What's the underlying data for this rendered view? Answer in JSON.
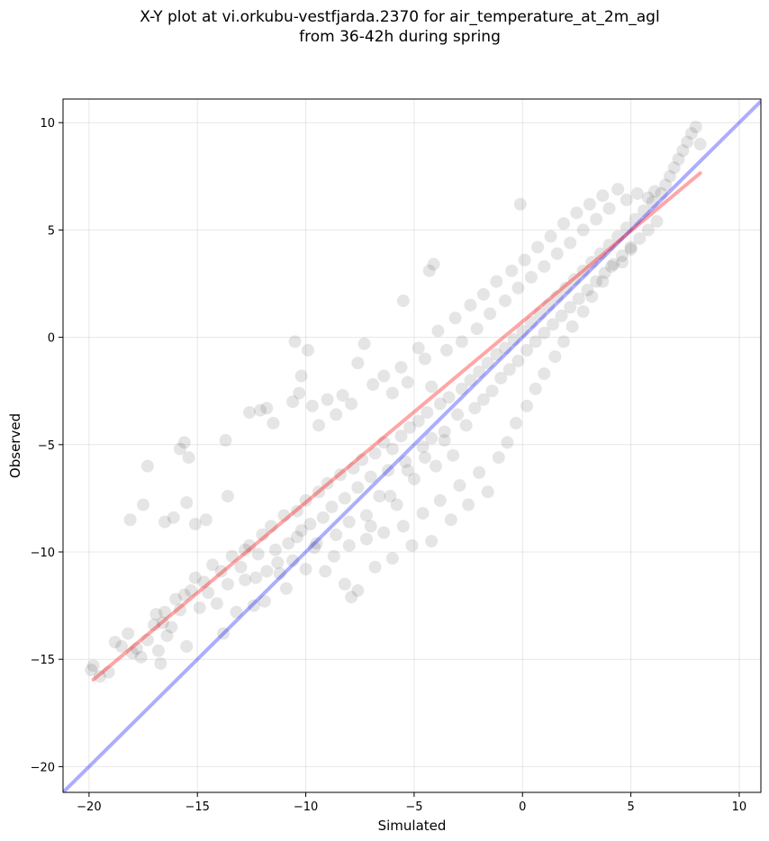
{
  "chart_data": {
    "type": "scatter",
    "title_line1": "X-Y plot at vi.orkubu-vestfjarda.2370 for air_temperature_at_2m_agl",
    "title_line2": "from 36-42h during spring",
    "xlabel": "Simulated",
    "ylabel": "Observed",
    "xlim": [
      -21.2,
      11.0
    ],
    "ylim": [
      -21.2,
      11.1
    ],
    "x_ticks": [
      -20,
      -15,
      -10,
      -5,
      0,
      5,
      10
    ],
    "y_ticks": [
      -20,
      -15,
      -10,
      -5,
      0,
      5,
      10
    ],
    "x_tick_labels": [
      "−20",
      "−15",
      "−10",
      "−5",
      "0",
      "5",
      "10"
    ],
    "y_tick_labels": [
      "−20",
      "−15",
      "−10",
      "−5",
      "0",
      "5",
      "10"
    ],
    "grid": true,
    "point_color": "#000000",
    "point_alpha": 0.1,
    "identity_line": {
      "x": [
        -21.2,
        11.0
      ],
      "y": [
        -21.2,
        11.0
      ],
      "color": "#0000ff"
    },
    "fit_line": {
      "x": [
        -19.8,
        8.2
      ],
      "y": [
        -15.95,
        7.65
      ],
      "color": "#ff0000"
    },
    "points": [
      [
        -19.9,
        -15.5
      ],
      [
        -19.8,
        -15.3
      ],
      [
        -19.5,
        -15.8
      ],
      [
        -19.1,
        -15.6
      ],
      [
        -18.8,
        -14.2
      ],
      [
        -18.5,
        -14.4
      ],
      [
        -18.2,
        -13.8
      ],
      [
        -18.0,
        -14.7
      ],
      [
        -17.8,
        -14.5
      ],
      [
        -17.6,
        -14.9
      ],
      [
        -17.3,
        -14.1
      ],
      [
        -17.0,
        -13.4
      ],
      [
        -16.8,
        -14.6
      ],
      [
        -16.7,
        -15.2
      ],
      [
        -16.9,
        -12.9
      ],
      [
        -16.6,
        -13.3
      ],
      [
        -16.5,
        -12.8
      ],
      [
        -16.4,
        -13.9
      ],
      [
        -16.2,
        -13.5
      ],
      [
        -16.0,
        -12.2
      ],
      [
        -15.8,
        -12.7
      ],
      [
        -15.6,
        -12.0
      ],
      [
        -15.5,
        -14.4
      ],
      [
        -15.3,
        -11.8
      ],
      [
        -15.1,
        -11.2
      ],
      [
        -14.9,
        -12.6
      ],
      [
        -14.7,
        -11.4
      ],
      [
        -14.5,
        -11.9
      ],
      [
        -14.3,
        -10.6
      ],
      [
        -14.1,
        -12.4
      ],
      [
        -13.9,
        -10.9
      ],
      [
        -13.8,
        -13.8
      ],
      [
        -13.6,
        -11.5
      ],
      [
        -13.4,
        -10.2
      ],
      [
        -13.2,
        -12.8
      ],
      [
        -13.0,
        -10.7
      ],
      [
        -12.8,
        -11.3
      ],
      [
        -12.6,
        -9.7
      ],
      [
        -12.4,
        -12.5
      ],
      [
        -12.2,
        -10.1
      ],
      [
        -12.0,
        -9.2
      ],
      [
        -11.8,
        -10.9
      ],
      [
        -11.6,
        -8.8
      ],
      [
        -11.4,
        -9.9
      ],
      [
        -11.2,
        -11.0
      ],
      [
        -11.0,
        -8.3
      ],
      [
        -10.8,
        -9.6
      ],
      [
        -10.6,
        -10.4
      ],
      [
        -10.4,
        -8.1
      ],
      [
        -10.2,
        -9.0
      ],
      [
        -10.0,
        -7.6
      ],
      [
        -9.8,
        -8.7
      ],
      [
        -9.6,
        -9.8
      ],
      [
        -9.4,
        -7.2
      ],
      [
        -9.2,
        -8.4
      ],
      [
        -9.0,
        -6.8
      ],
      [
        -8.8,
        -7.9
      ],
      [
        -8.6,
        -9.2
      ],
      [
        -8.4,
        -6.4
      ],
      [
        -8.2,
        -7.5
      ],
      [
        -8.0,
        -8.6
      ],
      [
        -7.8,
        -6.1
      ],
      [
        -7.6,
        -7.0
      ],
      [
        -7.4,
        -5.7
      ],
      [
        -7.2,
        -8.3
      ],
      [
        -7.0,
        -6.5
      ],
      [
        -6.8,
        -5.4
      ],
      [
        -6.6,
        -7.4
      ],
      [
        -6.4,
        -4.9
      ],
      [
        -6.2,
        -6.2
      ],
      [
        -6.0,
        -5.2
      ],
      [
        -5.8,
        -7.8
      ],
      [
        -5.6,
        -4.6
      ],
      [
        -5.4,
        -5.8
      ],
      [
        -5.2,
        -4.2
      ],
      [
        -5.0,
        -6.6
      ],
      [
        -4.8,
        -3.9
      ],
      [
        -4.6,
        -5.1
      ],
      [
        -4.4,
        -3.5
      ],
      [
        -4.2,
        -4.7
      ],
      [
        -4.0,
        -6.0
      ],
      [
        -3.8,
        -3.1
      ],
      [
        -3.6,
        -4.4
      ],
      [
        -3.4,
        -2.8
      ],
      [
        -3.2,
        -5.5
      ],
      [
        -3.0,
        -3.6
      ],
      [
        -2.8,
        -2.4
      ],
      [
        -2.6,
        -4.1
      ],
      [
        -2.4,
        -2.0
      ],
      [
        -2.2,
        -3.3
      ],
      [
        -2.0,
        -1.6
      ],
      [
        -1.8,
        -2.9
      ],
      [
        -1.6,
        -1.2
      ],
      [
        -1.4,
        -2.5
      ],
      [
        -1.2,
        -0.8
      ],
      [
        -1.0,
        -1.9
      ],
      [
        -0.8,
        -0.5
      ],
      [
        -0.6,
        -1.5
      ],
      [
        -0.4,
        -0.1
      ],
      [
        -0.2,
        -1.1
      ],
      [
        0.0,
        0.3
      ],
      [
        0.2,
        -0.6
      ],
      [
        0.4,
        0.7
      ],
      [
        0.6,
        -0.2
      ],
      [
        0.8,
        1.1
      ],
      [
        1.0,
        0.2
      ],
      [
        1.2,
        1.5
      ],
      [
        1.4,
        0.6
      ],
      [
        1.6,
        1.9
      ],
      [
        1.8,
        1.0
      ],
      [
        2.0,
        2.3
      ],
      [
        2.2,
        1.4
      ],
      [
        2.4,
        2.7
      ],
      [
        2.6,
        1.8
      ],
      [
        2.8,
        3.1
      ],
      [
        3.0,
        2.2
      ],
      [
        3.2,
        3.5
      ],
      [
        3.4,
        2.6
      ],
      [
        3.6,
        3.9
      ],
      [
        3.8,
        3.0
      ],
      [
        4.0,
        4.3
      ],
      [
        4.2,
        3.4
      ],
      [
        4.4,
        4.7
      ],
      [
        4.6,
        3.8
      ],
      [
        4.8,
        5.1
      ],
      [
        5.0,
        4.2
      ],
      [
        5.2,
        5.5
      ],
      [
        5.4,
        4.6
      ],
      [
        5.6,
        5.9
      ],
      [
        5.8,
        5.0
      ],
      [
        6.0,
        6.3
      ],
      [
        6.2,
        5.4
      ],
      [
        6.4,
        6.7
      ],
      [
        6.6,
        7.1
      ],
      [
        6.8,
        7.5
      ],
      [
        7.0,
        7.9
      ],
      [
        7.2,
        8.3
      ],
      [
        7.4,
        8.7
      ],
      [
        7.6,
        9.1
      ],
      [
        7.8,
        9.5
      ],
      [
        8.0,
        9.8
      ],
      [
        8.2,
        9.0
      ],
      [
        -18.1,
        -8.5
      ],
      [
        -17.5,
        -7.8
      ],
      [
        -17.3,
        -6.0
      ],
      [
        -16.5,
        -8.6
      ],
      [
        -16.1,
        -8.4
      ],
      [
        -15.8,
        -5.2
      ],
      [
        -15.6,
        -4.9
      ],
      [
        -15.5,
        -7.7
      ],
      [
        -15.4,
        -5.6
      ],
      [
        -15.1,
        -8.7
      ],
      [
        -14.6,
        -8.5
      ],
      [
        -13.6,
        -7.4
      ],
      [
        -13.7,
        -4.8
      ],
      [
        -12.1,
        -3.4
      ],
      [
        -12.6,
        -3.5
      ],
      [
        -11.8,
        -3.3
      ],
      [
        -11.5,
        -4.0
      ],
      [
        -10.6,
        -3.0
      ],
      [
        -10.3,
        -2.6
      ],
      [
        -10.2,
        -1.8
      ],
      [
        -9.9,
        -0.6
      ],
      [
        -10.5,
        -0.2
      ],
      [
        -9.7,
        -3.2
      ],
      [
        -9.4,
        -4.1
      ],
      [
        -9.0,
        -2.9
      ],
      [
        -8.6,
        -3.6
      ],
      [
        -8.3,
        -2.7
      ],
      [
        -7.9,
        -3.1
      ],
      [
        -7.6,
        -1.2
      ],
      [
        -7.3,
        -0.3
      ],
      [
        -6.9,
        -2.2
      ],
      [
        -6.4,
        -1.8
      ],
      [
        -6.0,
        -2.6
      ],
      [
        -5.6,
        -1.4
      ],
      [
        -5.3,
        -2.1
      ],
      [
        -4.8,
        -0.5
      ],
      [
        -4.5,
        -1.0
      ],
      [
        -4.2,
        -2.3
      ],
      [
        -3.9,
        0.3
      ],
      [
        -3.5,
        -0.6
      ],
      [
        -3.1,
        0.9
      ],
      [
        -2.8,
        -0.2
      ],
      [
        -2.4,
        1.5
      ],
      [
        -2.1,
        0.4
      ],
      [
        -1.8,
        2.0
      ],
      [
        -1.5,
        1.1
      ],
      [
        -1.2,
        2.6
      ],
      [
        -0.8,
        1.7
      ],
      [
        -0.5,
        3.1
      ],
      [
        -0.2,
        2.3
      ],
      [
        0.1,
        3.6
      ],
      [
        0.4,
        2.8
      ],
      [
        0.7,
        4.2
      ],
      [
        1.0,
        3.3
      ],
      [
        1.3,
        4.7
      ],
      [
        1.6,
        3.9
      ],
      [
        1.9,
        5.3
      ],
      [
        2.2,
        4.4
      ],
      [
        2.5,
        5.8
      ],
      [
        2.8,
        5.0
      ],
      [
        3.1,
        6.2
      ],
      [
        3.4,
        5.5
      ],
      [
        3.7,
        6.6
      ],
      [
        4.0,
        6.0
      ],
      [
        4.4,
        6.9
      ],
      [
        4.8,
        6.4
      ],
      [
        5.3,
        6.7
      ],
      [
        5.8,
        6.5
      ],
      [
        6.1,
        6.8
      ],
      [
        -4.3,
        3.1
      ],
      [
        -4.1,
        3.4
      ],
      [
        -5.5,
        1.7
      ],
      [
        -0.1,
        6.2
      ],
      [
        -12.8,
        -9.9
      ],
      [
        -12.3,
        -11.2
      ],
      [
        -11.9,
        -12.3
      ],
      [
        -11.3,
        -10.5
      ],
      [
        -10.9,
        -11.7
      ],
      [
        -10.4,
        -9.3
      ],
      [
        -10.0,
        -10.8
      ],
      [
        -9.5,
        -9.6
      ],
      [
        -9.1,
        -10.9
      ],
      [
        -8.7,
        -10.2
      ],
      [
        -8.2,
        -11.5
      ],
      [
        -7.9,
        -12.1
      ],
      [
        -7.6,
        -11.8
      ],
      [
        -7.2,
        -9.4
      ],
      [
        -6.8,
        -10.7
      ],
      [
        -6.4,
        -9.1
      ],
      [
        -6.0,
        -10.3
      ],
      [
        -5.5,
        -8.8
      ],
      [
        -5.1,
        -9.7
      ],
      [
        -4.6,
        -8.2
      ],
      [
        -4.2,
        -9.5
      ],
      [
        -3.8,
        -7.6
      ],
      [
        -3.3,
        -8.5
      ],
      [
        -2.9,
        -6.9
      ],
      [
        -2.5,
        -7.8
      ],
      [
        -2.0,
        -6.3
      ],
      [
        -1.6,
        -7.2
      ],
      [
        -1.1,
        -5.6
      ],
      [
        -0.7,
        -4.9
      ],
      [
        -0.3,
        -4.0
      ],
      [
        0.2,
        -3.2
      ],
      [
        0.6,
        -2.4
      ],
      [
        1.0,
        -1.7
      ],
      [
        1.5,
        -0.9
      ],
      [
        1.9,
        -0.2
      ],
      [
        2.3,
        0.5
      ],
      [
        2.8,
        1.2
      ],
      [
        3.2,
        1.9
      ],
      [
        3.7,
        2.6
      ],
      [
        4.1,
        3.3
      ],
      [
        4.6,
        3.5
      ],
      [
        5.0,
        4.1
      ],
      [
        -6.1,
        -7.4
      ],
      [
        -7.0,
        -8.8
      ],
      [
        -8.0,
        -9.7
      ],
      [
        -5.3,
        -6.2
      ],
      [
        -4.5,
        -5.6
      ],
      [
        -3.6,
        -4.8
      ]
    ]
  }
}
